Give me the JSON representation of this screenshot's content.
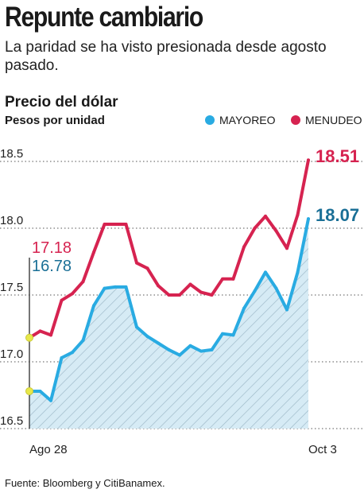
{
  "headline": "Repunte cambiario",
  "subtitle": "La paridad se ha visto presionada desde agosto pasado.",
  "source": "Fuente: Bloomberg y CitiBanamex.",
  "colors": {
    "mayoreo": "#29ABE2",
    "menudeo": "#D62350",
    "mayoreo_label": "#1A6F96",
    "fill": "#D6EBF5",
    "hatch": "#9CB7C6",
    "marker": "#E8E84A"
  },
  "chart_data": {
    "type": "line",
    "title": "Precio del dólar",
    "ylabel": "Pesos por unidad",
    "ylim": [
      16.5,
      18.5
    ],
    "yticks": [
      "18.5",
      "18.0",
      "17.5",
      "17.0",
      "16.5"
    ],
    "xtick_labels": [
      "Ago 28",
      "Oct 3"
    ],
    "grid": "horizontal-dotted",
    "legend": "top-right",
    "start_labels": {
      "menudeo": "17.18",
      "mayoreo": "16.78"
    },
    "end_labels": {
      "menudeo": "18.51",
      "mayoreo": "18.07"
    },
    "series": [
      {
        "name": "MENUDEO",
        "key": "menudeo",
        "values": [
          17.18,
          17.23,
          17.2,
          17.46,
          17.51,
          17.6,
          17.82,
          18.03,
          18.03,
          18.03,
          17.74,
          17.7,
          17.57,
          17.5,
          17.5,
          17.58,
          17.52,
          17.5,
          17.62,
          17.62,
          17.86,
          18.0,
          18.09,
          17.98,
          17.85,
          18.1,
          18.51
        ]
      },
      {
        "name": "MAYOREO",
        "key": "mayoreo",
        "values": [
          16.78,
          16.78,
          16.71,
          17.03,
          17.07,
          17.16,
          17.42,
          17.55,
          17.56,
          17.56,
          17.26,
          17.19,
          17.14,
          17.09,
          17.05,
          17.12,
          17.08,
          17.09,
          17.21,
          17.2,
          17.4,
          17.53,
          17.67,
          17.55,
          17.39,
          17.67,
          18.07
        ]
      }
    ]
  }
}
